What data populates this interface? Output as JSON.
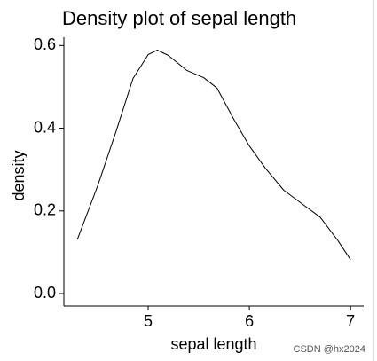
{
  "chart_data": {
    "type": "line",
    "title": "Density plot of sepal length",
    "x_label": "sepal length",
    "y_label": "density",
    "x": [
      4.3,
      4.5,
      4.68,
      4.85,
      5.0,
      5.09,
      5.2,
      5.38,
      5.55,
      5.68,
      5.85,
      6.0,
      6.16,
      6.34,
      6.56,
      6.7,
      6.87,
      7.0
    ],
    "y": [
      0.131,
      0.26,
      0.39,
      0.52,
      0.578,
      0.589,
      0.576,
      0.54,
      0.522,
      0.497,
      0.42,
      0.357,
      0.303,
      0.25,
      0.21,
      0.185,
      0.13,
      0.082
    ],
    "color": "#000000",
    "xlim": [
      4.167,
      7.13
    ],
    "ylim": [
      -0.03,
      0.62
    ],
    "xticks": [
      5,
      6,
      7
    ],
    "yticks": [
      {
        "value": 0,
        "label": "0.0"
      },
      0.2,
      0.4,
      0.6
    ],
    "watermark": "CSDN @hx2024"
  }
}
